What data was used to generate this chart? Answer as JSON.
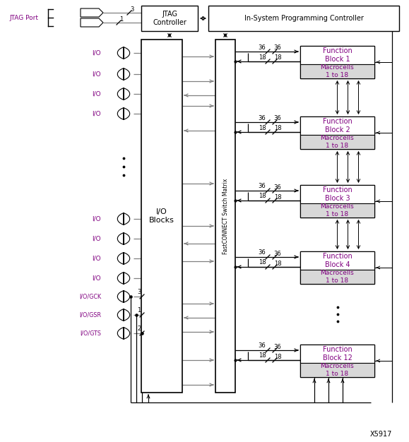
{
  "bg_color": "#ffffff",
  "watermark": "X5917",
  "jtag_port_label": "JTAG Port",
  "jtag_ctrl_label": "JTAG\nController",
  "isp_label": "In-System Programming Controller",
  "io_blocks_label": "I/O\nBlocks",
  "fastconnect_label": "FastCONNECT Switch Matrix",
  "function_block_labels": [
    "Function\nBlock 1",
    "Function\nBlock 2",
    "Function\nBlock 3",
    "Function\nBlock 4",
    "Function\nBlock 12"
  ],
  "macrocell_label": "Macrocells\n1 to 18",
  "io_label": "I/O",
  "io_special_labels": [
    "I/O/GCK",
    "I/O/GSR",
    "I/O/GTS"
  ],
  "io_special_nums": [
    "3",
    "1",
    "2"
  ],
  "jtag_num1": "3",
  "jtag_num2": "1",
  "label_color": "#800080",
  "line_color": "#808080",
  "black": "#000000",
  "white": "#ffffff",
  "macrocell_bg": "#d8d8d8"
}
